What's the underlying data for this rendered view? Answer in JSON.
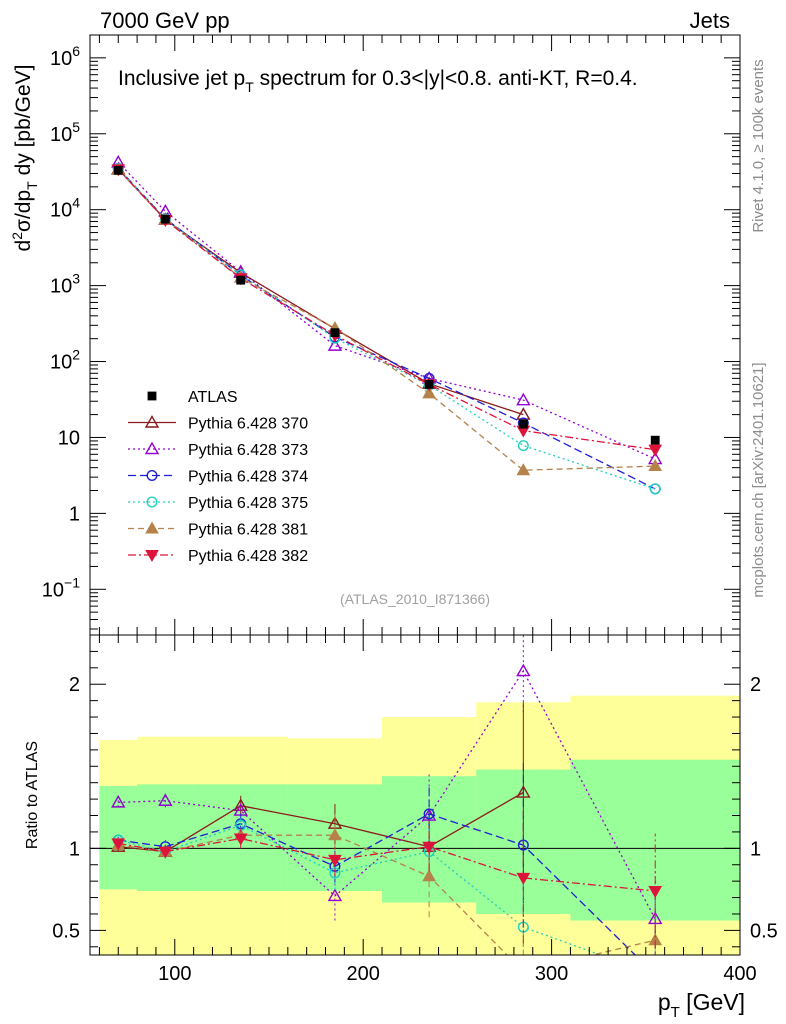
{
  "header": {
    "left": "7000 GeV pp",
    "right": "Jets"
  },
  "side_labels": {
    "rivet": "Rivet 4.1.0, ≥ 100k events",
    "mcplots": "mcplots.cern.ch [arXiv:2401.10621]"
  },
  "chart_data": {
    "type": "scatter",
    "title": "Inclusive jet pT spectrum for 0.3<|y|<0.8.  anti-KT, R=0.4.",
    "title_parts": {
      "pre": "Inclusive jet p",
      "sub": "T",
      "post": " spectrum for 0.3<|y|<0.8.  anti-KT, R=0.4."
    },
    "analysis_id": "(ATLAS_2010_I871366)",
    "xlabel": "p_T [GeV]",
    "xlabel_parts": {
      "main": "p",
      "sub": "T",
      "unit": " [GeV]"
    },
    "ylabel": "d²σ/dp_T dy [pb/GeV]",
    "ylabel_parts": {
      "a": "d",
      "b": "2",
      "c": "σ/dp",
      "d": "T",
      "e": " dy [pb/GeV]"
    },
    "ratio_ylabel": "Ratio to ATLAS",
    "xlim": [
      55,
      400
    ],
    "ylim": [
      0.025,
      2000000
    ],
    "yscale": "log",
    "ratio_ylim": [
      0.35,
      2.3
    ],
    "x_ticks": [
      100,
      200,
      300,
      400
    ],
    "y_ticks": [
      {
        "v": 1000000,
        "base": "10",
        "exp": "6"
      },
      {
        "v": 100000,
        "base": "10",
        "exp": "5"
      },
      {
        "v": 10000,
        "base": "10",
        "exp": "4"
      },
      {
        "v": 1000,
        "base": "10",
        "exp": "3"
      },
      {
        "v": 100,
        "base": "10",
        "exp": "2"
      },
      {
        "v": 10,
        "base": "10",
        "exp": ""
      },
      {
        "v": 1,
        "base": "1",
        "exp": ""
      },
      {
        "v": 0.1,
        "base": "10",
        "exp": "−1"
      }
    ],
    "ratio_ticks": [
      {
        "v": 0.5,
        "label": "0.5"
      },
      {
        "v": 1,
        "label": "1"
      },
      {
        "v": 2,
        "label": "2"
      }
    ],
    "x": [
      70,
      95,
      135,
      185,
      235,
      285,
      355
    ],
    "bins": [
      [
        60,
        80
      ],
      [
        80,
        110
      ],
      [
        110,
        160
      ],
      [
        160,
        210
      ],
      [
        210,
        260
      ],
      [
        260,
        310
      ],
      [
        310,
        400
      ]
    ],
    "band_green": [
      [
        0.75,
        1.38
      ],
      [
        0.74,
        1.39
      ],
      [
        0.74,
        1.39
      ],
      [
        0.74,
        1.39
      ],
      [
        0.67,
        1.44
      ],
      [
        0.6,
        1.48
      ],
      [
        0.56,
        1.54
      ]
    ],
    "band_yellow": [
      [
        0.34,
        1.66
      ],
      [
        0.34,
        1.68
      ],
      [
        0.34,
        1.68
      ],
      [
        0.34,
        1.67
      ],
      [
        0.34,
        1.8
      ],
      [
        0.34,
        1.89
      ],
      [
        0.34,
        1.93
      ]
    ],
    "data": {
      "name": "ATLAS",
      "values": [
        33000,
        7500,
        1180,
        240,
        50,
        15,
        9.2
      ]
    },
    "series": [
      {
        "name": "Pythia 6.428 370",
        "color": "#8b1a1a",
        "dash": "none",
        "marker": "triangle-open",
        "values": [
          34000,
          7400,
          1480,
          270,
          51,
          20,
          null
        ],
        "ratio": [
          1.01,
          0.98,
          1.26,
          1.15,
          1.01,
          1.34,
          null
        ],
        "ratio_err": [
          0.03,
          0.04,
          0.06,
          0.12,
          0.2,
          0.55,
          null
        ]
      },
      {
        "name": "Pythia 6.428 373",
        "color": "#9400d3",
        "dash": "2,3",
        "marker": "triangle-open",
        "values": [
          42000,
          9500,
          1520,
          162,
          60,
          31,
          5.2
        ],
        "ratio": [
          1.28,
          1.29,
          1.23,
          0.71,
          1.2,
          2.08,
          0.57
        ],
        "ratio_err": [
          0.03,
          0.04,
          0.06,
          0.15,
          0.25,
          0.25,
          0.3
        ]
      },
      {
        "name": "Pythia 6.428 374",
        "color": "#1f1fd6",
        "dash": "8,4",
        "marker": "circle-open",
        "values": [
          35000,
          7600,
          1370,
          210,
          60,
          15.5,
          2.1
        ],
        "ratio": [
          1.05,
          1.01,
          1.15,
          0.89,
          1.21,
          1.02,
          0.23
        ],
        "ratio_err": [
          0.03,
          0.04,
          0.06,
          0.1,
          0.18,
          0.5,
          0.5
        ]
      },
      {
        "name": "Pythia 6.428 375",
        "color": "#20d0c0",
        "dash": "2,3",
        "marker": "circle-open",
        "values": [
          35000,
          7500,
          1390,
          203,
          49,
          7.8,
          2.1
        ],
        "ratio": [
          1.05,
          0.98,
          1.14,
          0.85,
          0.98,
          0.52,
          0.23
        ],
        "ratio_err": [
          0.03,
          0.04,
          0.06,
          0.1,
          0.15,
          0.3,
          0.5
        ]
      },
      {
        "name": "Pythia 6.428 381",
        "color": "#b5824a",
        "dash": "6,4",
        "marker": "triangle-filled",
        "values": [
          33500,
          7400,
          1270,
          275,
          38,
          3.7,
          4.2
        ],
        "ratio": [
          1.02,
          0.98,
          1.08,
          1.08,
          0.83,
          0.25,
          0.44
        ],
        "ratio_err": [
          0.03,
          0.04,
          0.06,
          0.15,
          0.25,
          0.4,
          0.3
        ]
      },
      {
        "name": "Pythia 6.428 382",
        "color": "#dc143c",
        "dash": "8,3,2,3",
        "marker": "triangle-down-filled",
        "values": [
          34000,
          7300,
          1250,
          222,
          50,
          12.3,
          6.9
        ],
        "ratio": [
          1.03,
          0.98,
          1.06,
          0.93,
          1.01,
          0.82,
          0.74
        ],
        "ratio_err": [
          0.03,
          0.04,
          0.06,
          0.1,
          0.15,
          0.4,
          0.35
        ]
      }
    ]
  }
}
